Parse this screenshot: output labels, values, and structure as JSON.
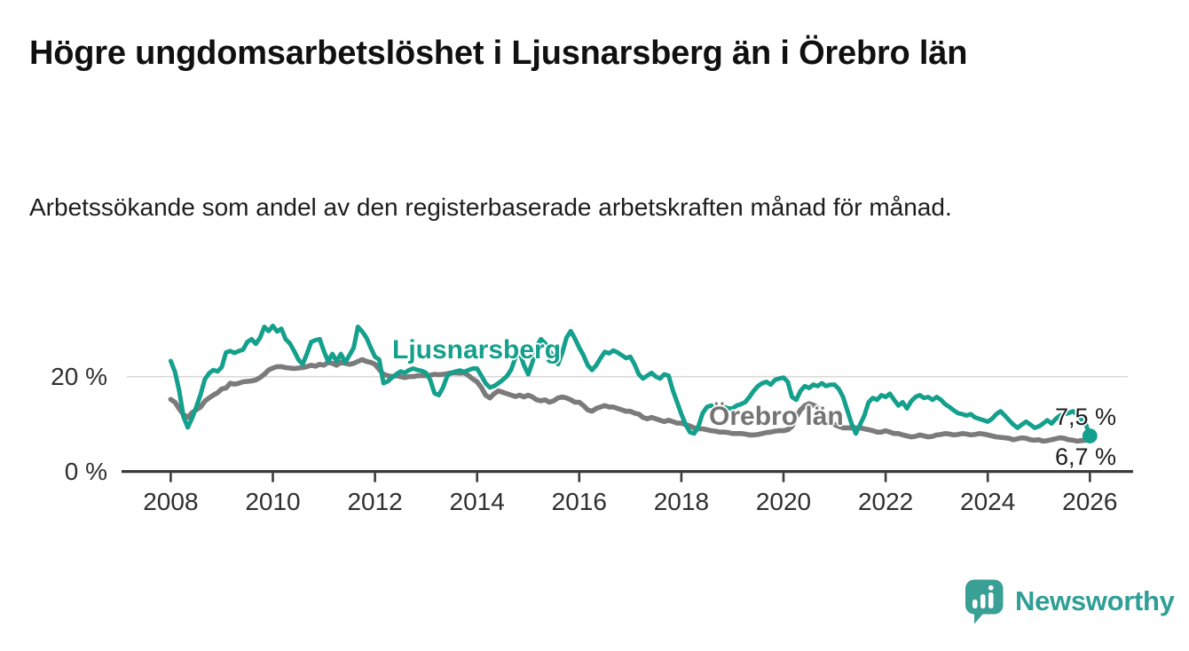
{
  "header": {
    "title": "Högre ungdomsarbetslöshet i Ljusnarsberg än i Örebro län",
    "subtitle": "Arbetssökande som andel av den registerbaserade arbetskraften månad för månad."
  },
  "footer": {
    "brand": "Newsworthy"
  },
  "chart_data": {
    "type": "line",
    "title": "Högre ungdomsarbetslöshet i Ljusnarsberg än i Örebro län",
    "subtitle": "Arbetssökande som andel av den registerbaserade arbetskraften månad för månad.",
    "unit": "percent",
    "frequency": "monthly",
    "x_start": "2008-01",
    "x_end": "2026-01",
    "ylim": [
      0,
      32
    ],
    "y_ticks": [
      0,
      20
    ],
    "y_tick_labels": [
      "0 %",
      "20 %"
    ],
    "x_tick_labels": [
      "2008",
      "2010",
      "2012",
      "2014",
      "2016",
      "2018",
      "2020",
      "2022",
      "2024",
      "2026"
    ],
    "grid": "horizontal-only",
    "legend_position": "inline-labels",
    "colors": {
      "axis": "#3b3b3b",
      "gridline": "#d9d9d9",
      "tick_text": "#2f2f2f"
    },
    "series": [
      {
        "name": "Ljusnarsberg",
        "color": "#14a08c",
        "end_value": 7.5,
        "end_label": "7,5 %",
        "values": [
          23.3,
          21.0,
          17.0,
          11.5,
          9.3,
          11.2,
          13.6,
          16.2,
          19.4,
          20.7,
          21.4,
          21.1,
          22.0,
          25.1,
          25.4,
          25.0,
          25.4,
          25.7,
          27.3,
          27.9,
          26.9,
          28.2,
          30.5,
          29.6,
          30.7,
          29.5,
          30.1,
          27.9,
          27.0,
          25.4,
          23.6,
          22.6,
          24.8,
          27.3,
          27.7,
          27.9,
          25.4,
          23.2,
          24.8,
          23.2,
          24.8,
          23.0,
          24.5,
          26.1,
          30.5,
          29.5,
          28.2,
          26.1,
          24.2,
          23.6,
          18.6,
          19.0,
          19.8,
          20.5,
          21.1,
          20.8,
          21.4,
          21.7,
          21.4,
          21.2,
          20.8,
          19.3,
          16.5,
          16.1,
          17.7,
          20.2,
          20.8,
          21.1,
          21.3,
          21.0,
          21.4,
          21.7,
          21.7,
          20.2,
          18.6,
          17.7,
          18.0,
          18.6,
          19.3,
          20.1,
          21.5,
          24.0,
          25.1,
          22.4,
          20.5,
          23.0,
          26.4,
          27.9,
          27.0,
          25.5,
          24.0,
          22.6,
          25.0,
          28.2,
          29.6,
          28.0,
          26.1,
          24.5,
          22.4,
          21.4,
          22.4,
          23.9,
          25.2,
          24.9,
          25.5,
          25.1,
          24.5,
          23.9,
          24.2,
          22.6,
          20.5,
          19.6,
          20.2,
          20.8,
          20.0,
          19.6,
          20.5,
          20.2,
          17.1,
          14.6,
          12.1,
          9.9,
          8.3,
          8.0,
          9.5,
          12.3,
          13.6,
          13.9,
          13.6,
          13.3,
          13.6,
          13.3,
          13.3,
          13.9,
          14.2,
          14.6,
          15.7,
          17.0,
          18.0,
          18.6,
          18.9,
          18.3,
          19.3,
          19.6,
          19.8,
          18.9,
          15.7,
          15.1,
          17.0,
          18.0,
          17.6,
          18.3,
          18.0,
          18.6,
          18.0,
          18.3,
          18.3,
          17.4,
          15.7,
          12.9,
          10.1,
          8.0,
          9.9,
          11.8,
          14.6,
          15.5,
          15.1,
          16.1,
          15.7,
          16.4,
          15.1,
          13.9,
          14.6,
          13.3,
          14.8,
          15.7,
          16.1,
          15.5,
          15.7,
          15.1,
          15.7,
          15.1,
          14.2,
          13.6,
          12.9,
          12.3,
          12.1,
          11.8,
          12.1,
          11.4,
          11.1,
          10.8,
          10.5,
          11.1,
          12.1,
          12.7,
          11.8,
          10.8,
          9.9,
          9.2,
          9.9,
          10.5,
          9.9,
          9.2,
          9.5,
          10.1,
          10.8,
          10.1,
          11.1,
          11.8,
          12.1,
          12.3,
          12.7,
          12.0,
          11.1,
          10.1,
          7.5
        ]
      },
      {
        "name": "Örebro län",
        "color": "#7b7b7b",
        "end_value": 6.7,
        "end_label": "6,7 %",
        "values": [
          15.2,
          14.6,
          13.2,
          12.0,
          11.4,
          12.4,
          13.0,
          13.6,
          14.8,
          15.5,
          16.1,
          16.6,
          17.4,
          17.6,
          18.6,
          18.4,
          18.6,
          18.9,
          19.0,
          19.1,
          19.3,
          19.8,
          20.5,
          21.4,
          21.8,
          22.1,
          22.1,
          21.9,
          21.8,
          21.7,
          21.8,
          21.9,
          22.1,
          22.4,
          22.2,
          22.6,
          22.4,
          23.0,
          22.8,
          22.4,
          23.0,
          22.8,
          22.6,
          22.8,
          23.2,
          23.6,
          23.2,
          23.0,
          22.6,
          21.5,
          20.5,
          20.2,
          20.0,
          20.2,
          20.0,
          19.8,
          20.0,
          20.0,
          20.2,
          20.2,
          20.2,
          20.3,
          20.5,
          20.4,
          20.5,
          20.6,
          20.8,
          20.8,
          20.7,
          20.8,
          20.2,
          19.5,
          18.9,
          17.7,
          16.1,
          15.5,
          16.4,
          17.0,
          16.7,
          16.4,
          16.1,
          15.8,
          16.1,
          15.7,
          16.1,
          15.7,
          15.1,
          14.9,
          15.1,
          14.6,
          14.9,
          15.5,
          15.7,
          15.5,
          15.1,
          14.6,
          14.6,
          13.9,
          13.0,
          12.7,
          13.3,
          13.6,
          13.9,
          13.6,
          13.6,
          13.3,
          13.0,
          12.7,
          12.7,
          12.3,
          12.1,
          11.4,
          11.1,
          11.4,
          11.1,
          10.8,
          10.5,
          10.8,
          10.5,
          10.2,
          10.2,
          9.9,
          9.6,
          9.2,
          9.0,
          9.0,
          8.8,
          8.6,
          8.5,
          8.3,
          8.3,
          8.2,
          8.0,
          8.0,
          8.0,
          7.9,
          7.7,
          7.7,
          7.8,
          8.0,
          8.2,
          8.3,
          8.5,
          8.6,
          8.6,
          8.8,
          9.5,
          11.5,
          13.0,
          13.9,
          14.3,
          14.0,
          13.5,
          12.5,
          11.5,
          10.5,
          9.9,
          9.5,
          9.2,
          9.2,
          9.2,
          9.2,
          9.2,
          9.0,
          8.8,
          8.6,
          8.3,
          8.3,
          8.6,
          8.3,
          8.0,
          8.0,
          7.7,
          7.5,
          7.3,
          7.4,
          7.7,
          7.5,
          7.3,
          7.4,
          7.7,
          7.8,
          8.0,
          7.9,
          7.7,
          7.8,
          8.0,
          7.9,
          7.7,
          7.8,
          8.0,
          7.9,
          7.7,
          7.5,
          7.3,
          7.2,
          7.1,
          7.0,
          6.7,
          6.9,
          7.1,
          7.0,
          6.7,
          6.6,
          6.7,
          6.4,
          6.5,
          6.7,
          6.9,
          7.1,
          7.0,
          6.7,
          6.6,
          6.4,
          6.5,
          6.6,
          6.7
        ]
      }
    ]
  }
}
